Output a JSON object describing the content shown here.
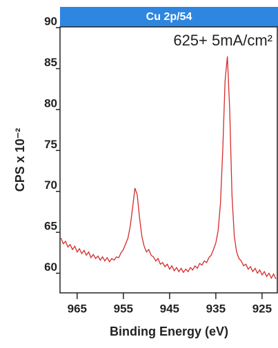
{
  "chart_data": {
    "type": "line",
    "title": "Cu 2p/54",
    "annotation": "625+ 5mA/cm²",
    "x_label": "Binding Energy (eV)",
    "y_label": "CPS x 10⁻²",
    "color": "#d42a2a",
    "title_color": "#2f86e0",
    "xlim": [
      968.7,
      921.7
    ],
    "xticks": [
      965,
      955,
      945,
      935,
      925
    ],
    "ylim": [
      57.6,
      90.1
    ],
    "yticks": [
      60,
      65,
      70,
      75,
      80,
      85,
      90
    ],
    "x": [
      968.5,
      968,
      967.5,
      967,
      966.5,
      966,
      965.5,
      965,
      964.5,
      964,
      963.5,
      963,
      962.5,
      962,
      961.5,
      961,
      960.5,
      960,
      959.5,
      959,
      958.5,
      958,
      957.5,
      957,
      956.5,
      956,
      955.5,
      955,
      954.5,
      954,
      953.5,
      953,
      952.5,
      952,
      951.5,
      951,
      950.5,
      950,
      949.5,
      949,
      948.5,
      948,
      947.5,
      947,
      946.5,
      946,
      945.5,
      945,
      944.5,
      944,
      943.5,
      943,
      942.5,
      942,
      941.5,
      941,
      940.5,
      940,
      939.5,
      939,
      938.5,
      938,
      937.5,
      937,
      936.5,
      936,
      935.5,
      935,
      934.5,
      934,
      933.5,
      933,
      932.5,
      932,
      931.5,
      931,
      930.5,
      930,
      929.5,
      929,
      928.5,
      928,
      927.5,
      927,
      926.5,
      926,
      925.5,
      925,
      924.5,
      924,
      923.5,
      923,
      922.5,
      922
    ],
    "values": [
      64.3,
      63.6,
      63.9,
      63.2,
      63.5,
      62.9,
      63.3,
      62.6,
      63.0,
      62.4,
      62.8,
      62.2,
      62.6,
      61.9,
      62.3,
      61.8,
      62.1,
      61.6,
      62.0,
      61.5,
      61.9,
      61.4,
      61.8,
      61.6,
      62.0,
      61.9,
      62.5,
      62.9,
      63.6,
      64.3,
      65.8,
      68.0,
      70.4,
      69.6,
      66.8,
      64.5,
      63.3,
      62.6,
      62.9,
      62.2,
      62.0,
      61.5,
      61.8,
      61.1,
      61.3,
      60.8,
      61.1,
      60.5,
      60.9,
      60.3,
      60.7,
      60.2,
      60.6,
      60.1,
      60.5,
      60.2,
      60.7,
      60.4,
      60.9,
      60.6,
      61.2,
      61.0,
      61.5,
      61.3,
      61.9,
      62.2,
      62.9,
      63.7,
      65.2,
      68.5,
      75.0,
      83.5,
      86.5,
      80.0,
      69.5,
      64.5,
      62.6,
      61.8,
      61.5,
      60.9,
      61.1,
      60.5,
      60.8,
      60.2,
      60.6,
      60.0,
      60.4,
      59.8,
      60.2,
      59.6,
      60.0,
      59.4,
      59.9,
      59.3
    ]
  }
}
